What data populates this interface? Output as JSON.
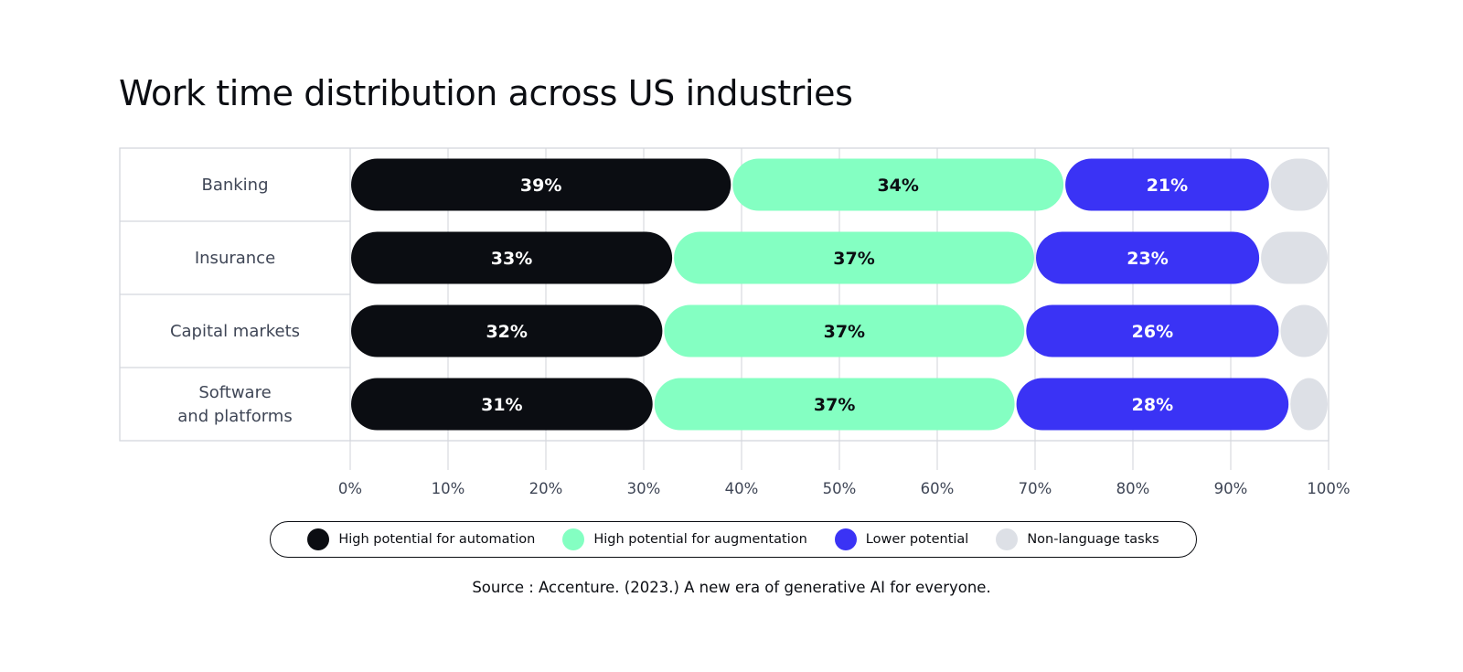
{
  "chart_data": {
    "type": "bar",
    "orientation": "horizontal",
    "stacked": true,
    "title": "Work time distribution across US industries",
    "categories": [
      [
        "Banking"
      ],
      [
        "Insurance"
      ],
      [
        "Capital markets"
      ],
      [
        "Software",
        "and platforms"
      ]
    ],
    "series": [
      {
        "name": "High potential for automation",
        "values": [
          39,
          33,
          32,
          31
        ],
        "color": "#0b0d12",
        "label_color": "#ffffff"
      },
      {
        "name": "High potential for augmentation",
        "values": [
          34,
          37,
          37,
          37
        ],
        "color": "#84ffc2",
        "label_color": "#0b0d12"
      },
      {
        "name": "Lower potential",
        "values": [
          21,
          23,
          26,
          28
        ],
        "color": "#3a33f5",
        "label_color": "#ffffff"
      },
      {
        "name": "Non-language tasks",
        "values": [
          6,
          7,
          5,
          4
        ],
        "color": "#dde0e6",
        "label_color": "#0b0d12"
      }
    ],
    "x_ticks": [
      "0%",
      "10%",
      "20%",
      "30%",
      "40%",
      "50%",
      "60%",
      "70%",
      "80%",
      "90%",
      "100%"
    ],
    "xlim": [
      0,
      100
    ],
    "grid": true,
    "legend_position": "bottom"
  },
  "legend": [
    {
      "label": "High potential for automation",
      "color": "#0b0d12",
      "icon": "circle-swatch"
    },
    {
      "label": "High potential for augmentation",
      "color": "#84ffc2",
      "icon": "circle-swatch"
    },
    {
      "label": "Lower potential",
      "color": "#3a33f5",
      "icon": "circle-swatch"
    },
    {
      "label": "Non-language tasks",
      "color": "#dde0e6",
      "icon": "circle-swatch"
    }
  ],
  "source": "Source : Accenture. (2023.) A new era of generative AI for everyone."
}
